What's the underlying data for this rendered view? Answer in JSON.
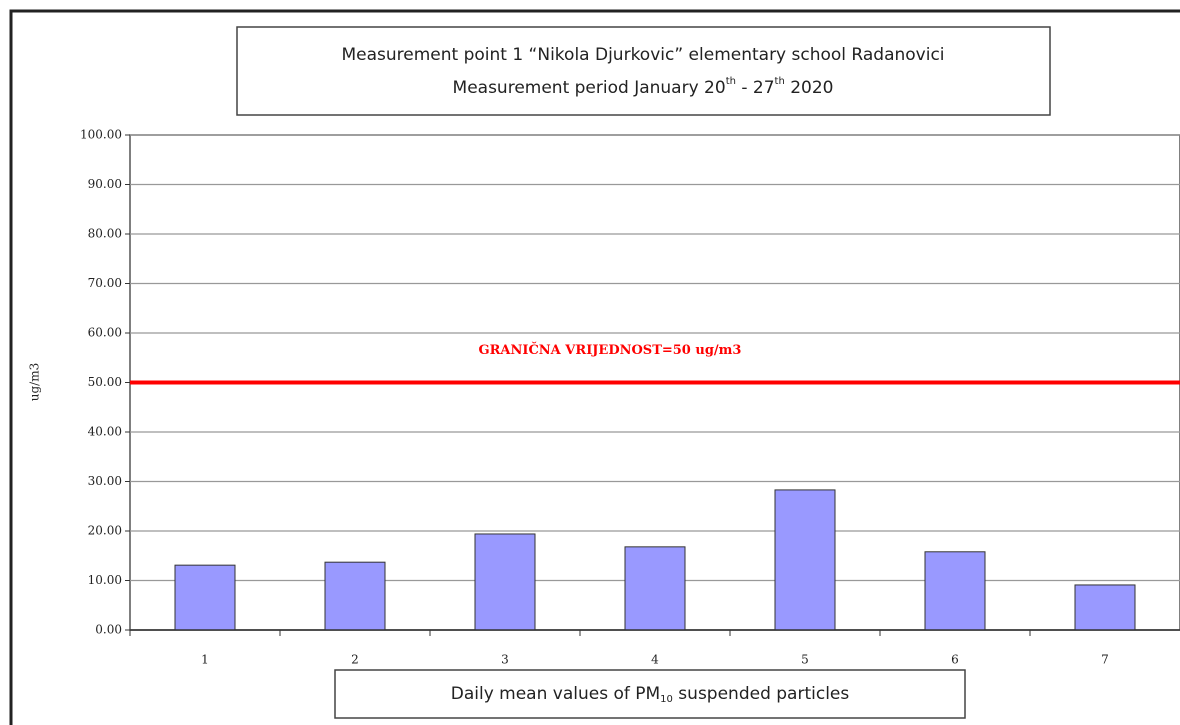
{
  "chart_data": {
    "type": "bar",
    "title": "Measurement point 1 “Nikola Djurkovic” elementary school Radanovici",
    "subtitle": [
      "Measurement period January 20",
      "th",
      " - 27",
      "th",
      " 2020"
    ],
    "xlabel": [
      "Daily mean values of PM",
      "10",
      " suspended particles"
    ],
    "ylabel": "ug/m3",
    "categories": [
      "1",
      "2",
      "3",
      "4",
      "5",
      "6",
      "7"
    ],
    "values": [
      13.1,
      13.7,
      19.4,
      16.8,
      28.3,
      15.8,
      9.1
    ],
    "color": "#9999ff",
    "ylim": [
      0,
      100
    ],
    "yticks": [
      {
        "value": 0,
        "label": "0.00"
      },
      {
        "value": 10,
        "label": "10.00"
      },
      {
        "value": 20,
        "label": "20.00"
      },
      {
        "value": 30,
        "label": "30.00"
      },
      {
        "value": 40,
        "label": "40.00"
      },
      {
        "value": 50,
        "label": "50.00"
      },
      {
        "value": 60,
        "label": "60.00"
      },
      {
        "value": 70,
        "label": "70.00"
      },
      {
        "value": 80,
        "label": "80.00"
      },
      {
        "value": 90,
        "label": "90.00"
      },
      {
        "value": 100,
        "label": "100.00"
      }
    ],
    "grid": true,
    "reference_line": {
      "value": 50,
      "label": "GRANIČNA VRIJEDNOST=50 ug/m3",
      "color": "#ff0000"
    }
  }
}
